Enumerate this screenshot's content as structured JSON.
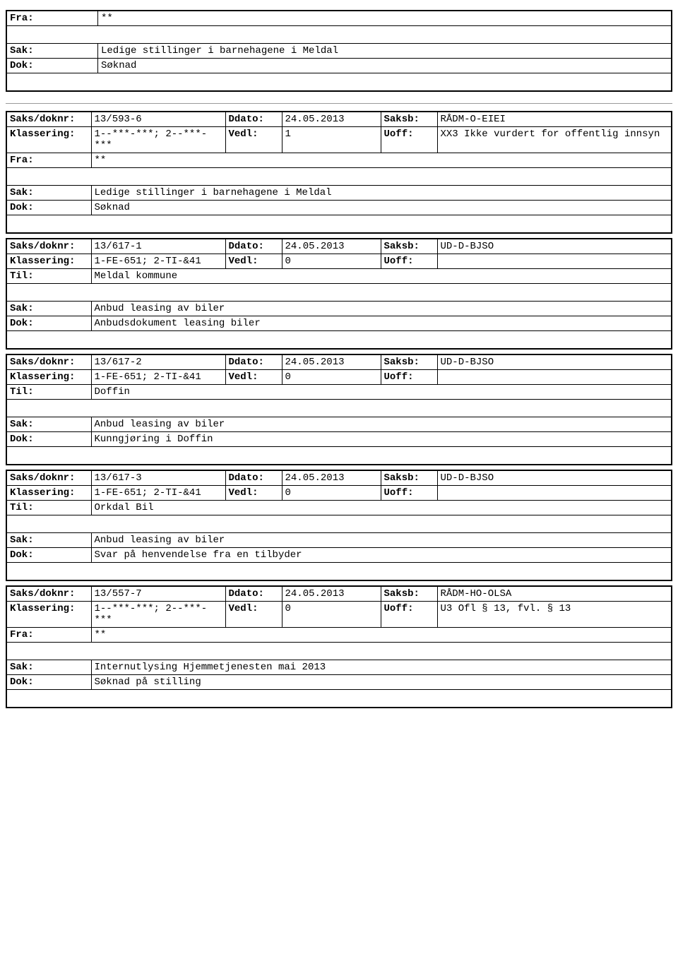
{
  "labels": {
    "fra": "Fra:",
    "til": "Til:",
    "sak": "Sak:",
    "dok": "Dok:",
    "saksdoknr": "Saks/doknr:",
    "ddato": "Ddato:",
    "saksb": "Saksb:",
    "klassering": "Klassering:",
    "vedl": "Vedl:",
    "uoff": "Uoff:"
  },
  "block0": {
    "fra": "**",
    "sak": "Ledige stillinger i barnehagene i Meldal",
    "dok": "Søknad"
  },
  "block1": {
    "saksdoknr": "13/593-6",
    "ddato": "24.05.2013",
    "saksb": "RÅDM-O-EIEI",
    "klassering": "1--***-***; 2--***-***",
    "vedl": "1",
    "uoff": "XX3 Ikke vurdert for offentlig innsyn",
    "fra": "**",
    "sak": "Ledige stillinger i barnehagene i Meldal",
    "dok": "Søknad"
  },
  "block2": {
    "saksdoknr": "13/617-1",
    "ddato": "24.05.2013",
    "saksb": "UD-D-BJSO",
    "klassering": "1-FE-651; 2-TI-&41",
    "vedl": "0",
    "uoff": "",
    "til": "Meldal kommune",
    "sak": "Anbud leasing av biler",
    "dok": "Anbudsdokument leasing biler"
  },
  "block3": {
    "saksdoknr": "13/617-2",
    "ddato": "24.05.2013",
    "saksb": "UD-D-BJSO",
    "klassering": "1-FE-651; 2-TI-&41",
    "vedl": "0",
    "uoff": "",
    "til": "Doffin",
    "sak": "Anbud leasing av biler",
    "dok": "Kunngjøring i Doffin"
  },
  "block4": {
    "saksdoknr": "13/617-3",
    "ddato": "24.05.2013",
    "saksb": "UD-D-BJSO",
    "klassering": "1-FE-651; 2-TI-&41",
    "vedl": "0",
    "uoff": "",
    "til": "Orkdal Bil",
    "sak": "Anbud leasing av biler",
    "dok": "Svar på henvendelse fra en tilbyder"
  },
  "block5": {
    "saksdoknr": "13/557-7",
    "ddato": "24.05.2013",
    "saksb": "RÅDM-HO-OLSA",
    "klassering": "1--***-***; 2--***-***",
    "vedl": "0",
    "uoff": "U3 Ofl § 13, fvl. § 13",
    "fra": "**",
    "sak": "Internutlysing Hjemmetjenesten mai 2013",
    "dok": "Søknad på stilling"
  }
}
